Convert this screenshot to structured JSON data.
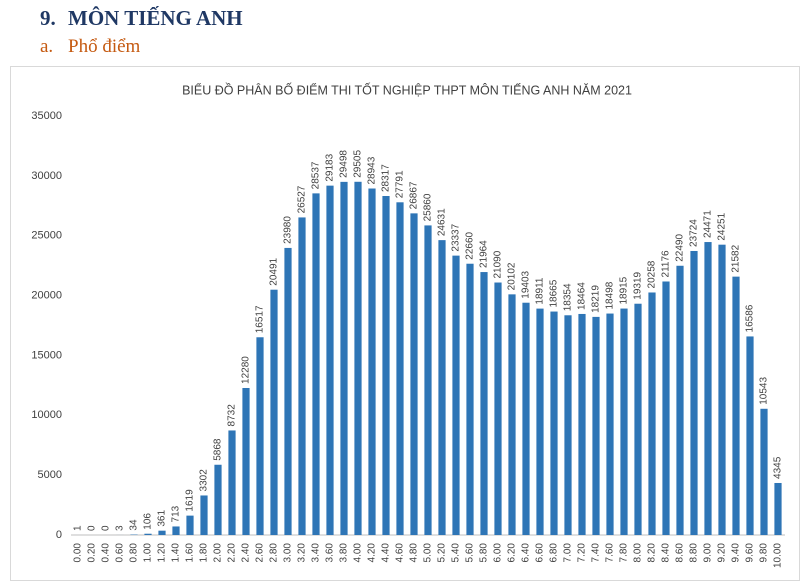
{
  "heading": {
    "number": "9.",
    "text": "MÔN TIẾNG ANH"
  },
  "subheading": {
    "number": "a.",
    "text": "Phổ điểm"
  },
  "chart_data": {
    "type": "bar",
    "title": "BIỂU ĐỒ PHÂN BỐ ĐIỂM THI TỐT NGHIỆP THPT MÔN TIẾNG ANH NĂM 2021",
    "categories": [
      "0.00",
      "0.20",
      "0.40",
      "0.60",
      "0.80",
      "1.00",
      "1.20",
      "1.40",
      "1.60",
      "1.80",
      "2.00",
      "2.20",
      "2.40",
      "2.60",
      "2.80",
      "3.00",
      "3.20",
      "3.40",
      "3.60",
      "3.80",
      "4.00",
      "4.20",
      "4.40",
      "4.60",
      "4.80",
      "5.00",
      "5.20",
      "5.40",
      "5.60",
      "5.80",
      "6.00",
      "6.20",
      "6.40",
      "6.60",
      "6.80",
      "7.00",
      "7.20",
      "7.40",
      "7.60",
      "7.80",
      "8.00",
      "8.20",
      "8.40",
      "8.60",
      "8.80",
      "9.00",
      "9.20",
      "9.40",
      "9.60",
      "9.80",
      "10.00"
    ],
    "values": [
      1,
      0,
      0,
      3,
      34,
      106,
      361,
      713,
      1619,
      3302,
      5868,
      8732,
      12280,
      16517,
      20491,
      23980,
      26527,
      28537,
      29183,
      29498,
      29505,
      28943,
      28317,
      27791,
      26867,
      25860,
      24631,
      23337,
      22660,
      21964,
      21090,
      20102,
      19403,
      18911,
      18665,
      18354,
      18464,
      18219,
      18498,
      18915,
      19319,
      20258,
      21176,
      22490,
      23724,
      24471,
      24251,
      21582,
      16586,
      10543,
      4345
    ],
    "color": "#2e75b6",
    "ylim": [
      0,
      35000
    ],
    "yticks": [
      0,
      5000,
      10000,
      15000,
      20000,
      25000,
      30000,
      35000
    ],
    "grid": false
  }
}
